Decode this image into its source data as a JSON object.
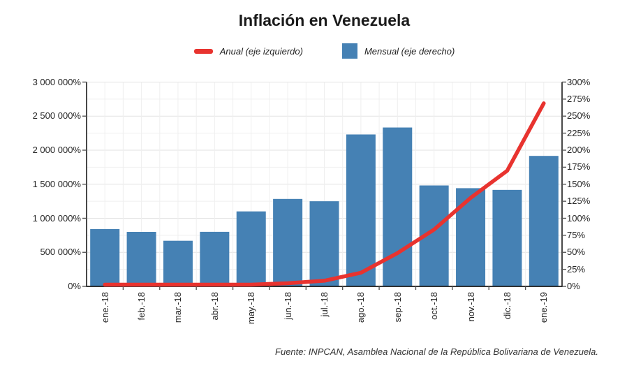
{
  "title": "Inflación en Venezuela",
  "legend": {
    "anual": {
      "label": "Anual (eje izquierdo)",
      "marker": "line-icon",
      "color": "#e8332f"
    },
    "mensual": {
      "label": "Mensual (eje derecho)",
      "marker": "square-icon",
      "color": "#4581b4"
    }
  },
  "source_note": "Fuente: INPCAN, Asamblea Nacional de la República Bolivariana de Venezuela.",
  "colors": {
    "bar": "#4581b4",
    "line": "#e8332f",
    "grid_minor": "#efefef",
    "grid_major": "#e2e2e2",
    "axis": "#1a1a1a",
    "tick": "#555555",
    "label_text": "#262626"
  },
  "chart_data": {
    "type": "bar",
    "subtype": "combo bar+line, dual axis",
    "title": "Inflación en Venezuela",
    "categories": [
      "ene.-18",
      "feb.-18",
      "mar.-18",
      "abr.-18",
      "may.-18",
      "jun.-18",
      "jul.-18",
      "ago.-18",
      "sep.-18",
      "oct.-18",
      "nov.-18",
      "dic.-18",
      "ene.-19"
    ],
    "series": [
      {
        "name": "Anual (eje izquierdo)",
        "type": "line",
        "axis": "left",
        "color": "#e8332f",
        "values": [
          4100,
          6100,
          8900,
          13800,
          24600,
          46300,
          82800,
          200000,
          488900,
          834000,
          1299700,
          1698500,
          2688700
        ]
      },
      {
        "name": "Mensual (eje derecho)",
        "type": "bar",
        "axis": "right",
        "color": "#4581b4",
        "values": [
          84.2,
          80.0,
          67.0,
          80.1,
          110.1,
          128.4,
          125.0,
          223.1,
          233.3,
          148.2,
          144.2,
          141.7,
          191.6
        ]
      }
    ],
    "left_axis": {
      "min": 0,
      "max": 3000000,
      "label_step": 500000,
      "grid_step": 250000,
      "tick_labels": [
        "0%",
        "500 000%",
        "1 000 000%",
        "1 500 000%",
        "2 000 000%",
        "2 500 000%",
        "3 000 000%"
      ]
    },
    "right_axis": {
      "min": 0,
      "max": 300,
      "label_step": 25,
      "grid_step": 25,
      "tick_labels": [
        "0%",
        "25%",
        "50%",
        "75%",
        "100%",
        "125%",
        "150%",
        "175%",
        "200%",
        "225%",
        "250%",
        "275%",
        "300%"
      ]
    },
    "grid": "on",
    "legend_position": "top-center",
    "xlabel": "",
    "ylabel_left": "",
    "ylabel_right": ""
  }
}
